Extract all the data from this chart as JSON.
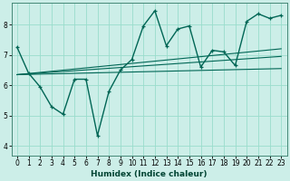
{
  "xlabel": "Humidex (Indice chaleur)",
  "bg_color": "#cceee8",
  "grid_color": "#99ddcc",
  "line_color": "#006655",
  "xlim": [
    -0.5,
    23.5
  ],
  "ylim": [
    3.7,
    8.7
  ],
  "xticks": [
    0,
    1,
    2,
    3,
    4,
    5,
    6,
    7,
    8,
    9,
    10,
    11,
    12,
    13,
    14,
    15,
    16,
    17,
    18,
    19,
    20,
    21,
    22,
    23
  ],
  "yticks": [
    4,
    5,
    6,
    7,
    8
  ],
  "series_main": {
    "x": [
      0,
      1,
      2,
      3,
      4,
      5,
      6,
      7,
      8,
      9,
      10,
      11,
      12,
      13,
      14,
      15,
      16,
      17,
      18,
      19,
      20,
      21,
      22,
      23
    ],
    "y": [
      7.25,
      6.4,
      5.95,
      5.3,
      5.05,
      6.2,
      6.2,
      4.35,
      5.8,
      6.5,
      6.85,
      7.95,
      8.45,
      7.3,
      7.85,
      7.95,
      6.6,
      7.15,
      7.1,
      6.65,
      8.1,
      8.35,
      8.2,
      8.3
    ]
  },
  "series_linear": [
    {
      "x": [
        0,
        23
      ],
      "y": [
        6.35,
        7.2
      ]
    },
    {
      "x": [
        0,
        23
      ],
      "y": [
        6.35,
        6.55
      ]
    },
    {
      "x": [
        0,
        23
      ],
      "y": [
        6.35,
        6.95
      ]
    }
  ]
}
